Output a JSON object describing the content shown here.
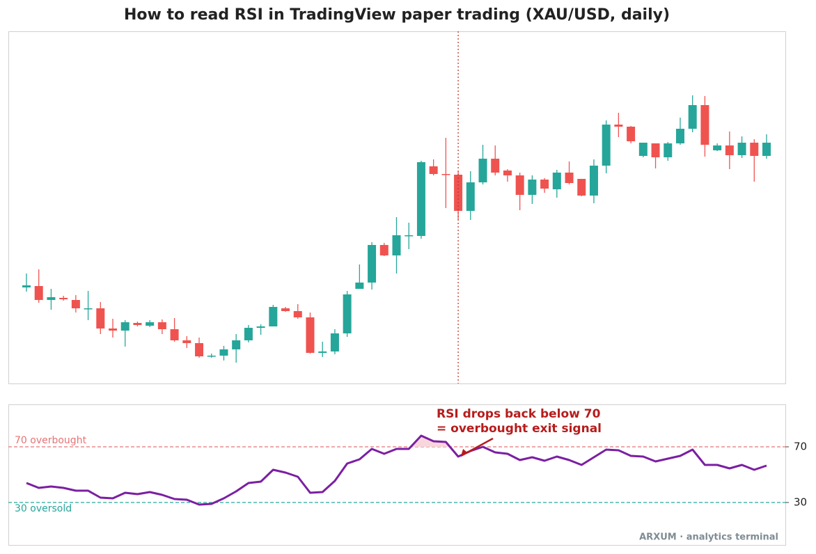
{
  "chart_data": [
    {
      "type": "candlestick",
      "title": "How to read RSI in TradingView paper trading  (XAU/USD, daily)",
      "up_color": "#26a69a",
      "down_color": "#ef5350",
      "ylim": [
        0,
        506
      ],
      "open": [
        138,
        140,
        120,
        123,
        120,
        108,
        108,
        79,
        76,
        87,
        83,
        88,
        78,
        62,
        58,
        39,
        40,
        49,
        62,
        80,
        82,
        108,
        104,
        95,
        44,
        46,
        72,
        136,
        145,
        199,
        184,
        212,
        212,
        312,
        301,
        300,
        248,
        289,
        323,
        306,
        299,
        271,
        293,
        279,
        303,
        294,
        270,
        313,
        372,
        369,
        327,
        345,
        325,
        345,
        366,
        400,
        335,
        342,
        328,
        346,
        327
      ],
      "high": [
        158,
        164,
        136,
        126,
        127,
        133,
        117,
        93,
        91,
        89,
        91,
        92,
        94,
        68,
        66,
        43,
        54,
        71,
        84,
        85,
        113,
        110,
        114,
        102,
        60,
        78,
        133,
        171,
        203,
        202,
        239,
        231,
        320,
        322,
        353,
        305,
        305,
        343,
        342,
        308,
        303,
        299,
        295,
        307,
        319,
        294,
        322,
        378,
        389,
        370,
        346,
        345,
        347,
        382,
        414,
        413,
        345,
        362,
        355,
        351,
        358
      ],
      "low": [
        132,
        116,
        106,
        119,
        102,
        91,
        71,
        66,
        53,
        82,
        81,
        71,
        60,
        51,
        37,
        37,
        33,
        30,
        59,
        70,
        82,
        103,
        93,
        43,
        38,
        42,
        67,
        136,
        135,
        183,
        158,
        193,
        208,
        299,
        252,
        235,
        235,
        286,
        299,
        290,
        249,
        258,
        274,
        267,
        286,
        269,
        259,
        302,
        354,
        345,
        325,
        309,
        320,
        343,
        361,
        326,
        334,
        308,
        324,
        290,
        323
      ],
      "close": [
        141,
        120,
        124,
        121,
        108,
        108,
        79,
        76,
        88,
        84,
        88,
        78,
        62,
        58,
        39,
        40,
        49,
        62,
        80,
        82,
        110,
        104,
        95,
        44,
        46,
        72,
        128,
        145,
        199,
        184,
        213,
        213,
        318,
        301,
        300,
        248,
        289,
        323,
        303,
        299,
        271,
        293,
        280,
        303,
        288,
        270,
        313,
        372,
        369,
        348,
        346,
        325,
        345,
        366,
        400,
        343,
        342,
        328,
        346,
        327,
        346
      ],
      "marker_index": 35
    },
    {
      "type": "line",
      "series": [
        {
          "name": "RSI",
          "color": "#7b1fa2",
          "values": [
            44,
            40.5,
            41.5,
            40.5,
            38.5,
            38.5,
            33.5,
            33,
            37,
            36,
            37.5,
            35.5,
            32.5,
            32,
            28.5,
            29,
            33,
            38,
            44,
            45,
            53.5,
            51.5,
            48.5,
            37,
            37.5,
            45.5,
            58,
            61,
            68.5,
            65,
            68.5,
            68.5,
            78,
            74,
            73.5,
            63,
            67,
            70,
            66,
            65,
            60.5,
            62.5,
            60,
            63,
            60.5,
            57,
            62.5,
            68,
            67.5,
            63.5,
            63,
            59.5,
            61.5,
            63.5,
            68,
            57,
            57,
            54.5,
            57,
            53.5,
            56.5
          ]
        }
      ],
      "ylim": [
        0,
        100
      ],
      "yticks": [
        30,
        70
      ],
      "levels": [
        {
          "value": 70,
          "label": "70  overbought",
          "color": "#e57373"
        },
        {
          "value": 30,
          "label": "30  oversold",
          "color": "#26a69a"
        }
      ],
      "overbought_fill": "#f8d7dc",
      "annotation": {
        "lines": [
          "RSI drops back below 70",
          "= overbought exit signal"
        ],
        "index": 35,
        "color": "#b71c1c"
      },
      "footer": "ARXUM · analytics terminal"
    }
  ]
}
